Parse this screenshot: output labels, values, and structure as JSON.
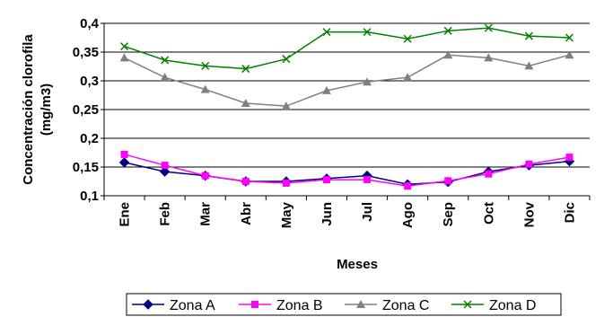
{
  "chart_data": {
    "type": "line",
    "categories": [
      "Ene",
      "Feb",
      "Mar",
      "Abr",
      "May",
      "Jun",
      "Jul",
      "Ago",
      "Sep",
      "Oct",
      "Nov",
      "Dic"
    ],
    "series": [
      {
        "name": "Zona A",
        "color": "#000080",
        "marker": "diamond",
        "values": [
          0.158,
          0.142,
          0.135,
          0.125,
          0.125,
          0.13,
          0.135,
          0.12,
          0.124,
          0.142,
          0.153,
          0.16
        ]
      },
      {
        "name": "Zona B",
        "color": "#ff00ff",
        "marker": "square",
        "values": [
          0.172,
          0.153,
          0.135,
          0.125,
          0.122,
          0.128,
          0.128,
          0.117,
          0.126,
          0.138,
          0.155,
          0.167
        ]
      },
      {
        "name": "Zona C",
        "color": "#808080",
        "marker": "triangle",
        "values": [
          0.34,
          0.306,
          0.285,
          0.261,
          0.256,
          0.283,
          0.298,
          0.306,
          0.345,
          0.34,
          0.326,
          0.345
        ]
      },
      {
        "name": "Zona D",
        "color": "#008000",
        "marker": "x",
        "values": [
          0.36,
          0.336,
          0.326,
          0.321,
          0.338,
          0.385,
          0.385,
          0.373,
          0.387,
          0.392,
          0.378,
          0.375
        ]
      }
    ],
    "yticks": [
      "0,1",
      "0,15",
      "0,2",
      "0,25",
      "0,3",
      "0,35",
      "0,4"
    ],
    "ylim": [
      0.1,
      0.4
    ],
    "xlabel": "Meses",
    "ylabel": [
      "Concentración clorofila",
      "(mg/m3)"
    ],
    "grid": true,
    "legend_position": "bottom"
  }
}
